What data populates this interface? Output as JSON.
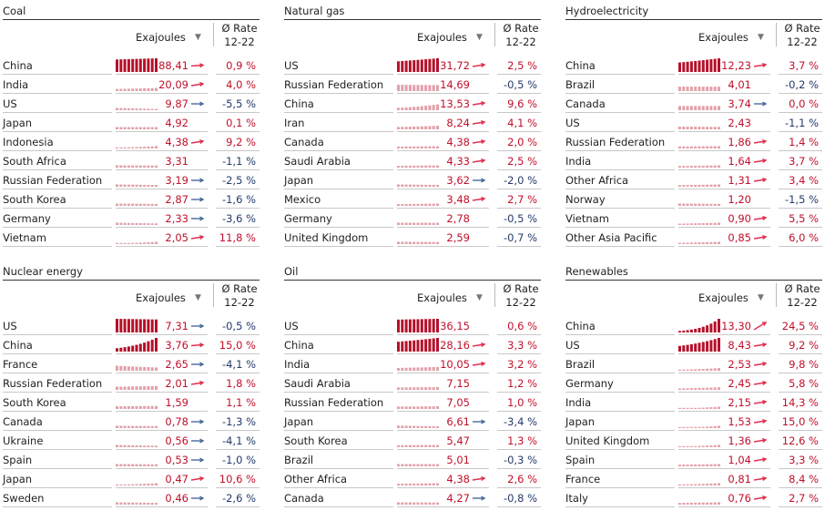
{
  "header": {
    "value_label": "Exajoules",
    "sort_icon": "sort-down-icon",
    "rate_line1": "Ø Rate",
    "rate_line2": "12-22"
  },
  "colors": {
    "bar_strong": "#b5102a",
    "bar_faint": "#e2a0a8",
    "positive": "#c0102a",
    "negative": "#233a6a",
    "arrow_up": "#e03050",
    "arrow_down": "#4a6a9a"
  },
  "chart_data": [
    {
      "type": "table",
      "title": "Coal",
      "rows": [
        {
          "name": "China",
          "value": "88,41",
          "rate": "0,9 %",
          "v": 88.41,
          "r": 0.9,
          "trend": "flat-up"
        },
        {
          "name": "India",
          "value": "20,09",
          "rate": "4,0 %",
          "v": 20.09,
          "r": 4.0,
          "trend": "up"
        },
        {
          "name": "US",
          "value": "9,87",
          "rate": "-5,5 %",
          "v": 9.87,
          "r": -5.5,
          "trend": "down"
        },
        {
          "name": "Japan",
          "value": "4,92",
          "rate": "0,1 %",
          "v": 4.92,
          "r": 0.1,
          "trend": "none"
        },
        {
          "name": "Indonesia",
          "value": "4,38",
          "rate": "9,2 %",
          "v": 4.38,
          "r": 9.2,
          "trend": "up"
        },
        {
          "name": "South Africa",
          "value": "3,31",
          "rate": "-1,1 %",
          "v": 3.31,
          "r": -1.1,
          "trend": "none"
        },
        {
          "name": "Russian Federation",
          "value": "3,19",
          "rate": "-2,5 %",
          "v": 3.19,
          "r": -2.5,
          "trend": "down"
        },
        {
          "name": "South Korea",
          "value": "2,87",
          "rate": "-1,6 %",
          "v": 2.87,
          "r": -1.6,
          "trend": "down"
        },
        {
          "name": "Germany",
          "value": "2,33",
          "rate": "-3,6 %",
          "v": 2.33,
          "r": -3.6,
          "trend": "down"
        },
        {
          "name": "Vietnam",
          "value": "2,05",
          "rate": "11,8 %",
          "v": 2.05,
          "r": 11.8,
          "trend": "up"
        }
      ]
    },
    {
      "type": "table",
      "title": "Natural gas",
      "rows": [
        {
          "name": "US",
          "value": "31,72",
          "rate": "2,5 %",
          "v": 31.72,
          "r": 2.5,
          "trend": "up"
        },
        {
          "name": "Russian Federation",
          "value": "14,69",
          "rate": "-0,5 %",
          "v": 14.69,
          "r": -0.5,
          "trend": "none"
        },
        {
          "name": "China",
          "value": "13,53",
          "rate": "9,6 %",
          "v": 13.53,
          "r": 9.6,
          "trend": "up"
        },
        {
          "name": "Iran",
          "value": "8,24",
          "rate": "4,1 %",
          "v": 8.24,
          "r": 4.1,
          "trend": "up"
        },
        {
          "name": "Canada",
          "value": "4,38",
          "rate": "2,0 %",
          "v": 4.38,
          "r": 2.0,
          "trend": "up"
        },
        {
          "name": "Saudi Arabia",
          "value": "4,33",
          "rate": "2,5 %",
          "v": 4.33,
          "r": 2.5,
          "trend": "up"
        },
        {
          "name": "Japan",
          "value": "3,62",
          "rate": "-2,0 %",
          "v": 3.62,
          "r": -2.0,
          "trend": "down"
        },
        {
          "name": "Mexico",
          "value": "3,48",
          "rate": "2,7 %",
          "v": 3.48,
          "r": 2.7,
          "trend": "up"
        },
        {
          "name": "Germany",
          "value": "2,78",
          "rate": "-0,5 %",
          "v": 2.78,
          "r": -0.5,
          "trend": "none"
        },
        {
          "name": "United Kingdom",
          "value": "2,59",
          "rate": "-0,7 %",
          "v": 2.59,
          "r": -0.7,
          "trend": "none"
        }
      ]
    },
    {
      "type": "table",
      "title": "Hydroelectricity",
      "rows": [
        {
          "name": "China",
          "value": "12,23",
          "rate": "3,7 %",
          "v": 12.23,
          "r": 3.7,
          "trend": "up"
        },
        {
          "name": "Brazil",
          "value": "4,01",
          "rate": "-0,2 %",
          "v": 4.01,
          "r": -0.2,
          "trend": "none"
        },
        {
          "name": "Canada",
          "value": "3,74",
          "rate": "0,0 %",
          "v": 3.74,
          "r": 0.0,
          "trend": "flat"
        },
        {
          "name": "US",
          "value": "2,43",
          "rate": "-1,1 %",
          "v": 2.43,
          "r": -1.1,
          "trend": "none"
        },
        {
          "name": "Russian Federation",
          "value": "1,86",
          "rate": "1,4 %",
          "v": 1.86,
          "r": 1.4,
          "trend": "up"
        },
        {
          "name": "India",
          "value": "1,64",
          "rate": "3,7 %",
          "v": 1.64,
          "r": 3.7,
          "trend": "up"
        },
        {
          "name": "Other Africa",
          "value": "1,31",
          "rate": "3,4 %",
          "v": 1.31,
          "r": 3.4,
          "trend": "up"
        },
        {
          "name": "Norway",
          "value": "1,20",
          "rate": "-1,5 %",
          "v": 1.2,
          "r": -1.5,
          "trend": "none"
        },
        {
          "name": "Vietnam",
          "value": "0,90",
          "rate": "5,5 %",
          "v": 0.9,
          "r": 5.5,
          "trend": "up"
        },
        {
          "name": "Other Asia Pacific",
          "value": "0,85",
          "rate": "6,0 %",
          "v": 0.85,
          "r": 6.0,
          "trend": "up"
        }
      ]
    },
    {
      "type": "table",
      "title": "Nuclear energy",
      "rows": [
        {
          "name": "US",
          "value": "7,31",
          "rate": "-0,5 %",
          "v": 7.31,
          "r": -0.5,
          "trend": "flat"
        },
        {
          "name": "China",
          "value": "3,76",
          "rate": "15,0 %",
          "v": 3.76,
          "r": 15.0,
          "trend": "flat-up"
        },
        {
          "name": "France",
          "value": "2,65",
          "rate": "-4,1 %",
          "v": 2.65,
          "r": -4.1,
          "trend": "flat"
        },
        {
          "name": "Russian Federation",
          "value": "2,01",
          "rate": "1,8 %",
          "v": 2.01,
          "r": 1.8,
          "trend": "up"
        },
        {
          "name": "South Korea",
          "value": "1,59",
          "rate": "1,1 %",
          "v": 1.59,
          "r": 1.1,
          "trend": "none"
        },
        {
          "name": "Canada",
          "value": "0,78",
          "rate": "-1,3 %",
          "v": 0.78,
          "r": -1.3,
          "trend": "flat"
        },
        {
          "name": "Ukraine",
          "value": "0,56",
          "rate": "-4,1 %",
          "v": 0.56,
          "r": -4.1,
          "trend": "flat"
        },
        {
          "name": "Spain",
          "value": "0,53",
          "rate": "-1,0 %",
          "v": 0.53,
          "r": -1.0,
          "trend": "flat"
        },
        {
          "name": "Japan",
          "value": "0,47",
          "rate": "10,6 %",
          "v": 0.47,
          "r": 10.6,
          "trend": "up"
        },
        {
          "name": "Sweden",
          "value": "0,46",
          "rate": "-2,6 %",
          "v": 0.46,
          "r": -2.6,
          "trend": "flat"
        }
      ]
    },
    {
      "type": "table",
      "title": "Oil",
      "rows": [
        {
          "name": "US",
          "value": "36,15",
          "rate": "0,6 %",
          "v": 36.15,
          "r": 0.6,
          "trend": "none"
        },
        {
          "name": "China",
          "value": "28,16",
          "rate": "3,3 %",
          "v": 28.16,
          "r": 3.3,
          "trend": "up"
        },
        {
          "name": "India",
          "value": "10,05",
          "rate": "3,2 %",
          "v": 10.05,
          "r": 3.2,
          "trend": "up"
        },
        {
          "name": "Saudi Arabia",
          "value": "7,15",
          "rate": "1,2 %",
          "v": 7.15,
          "r": 1.2,
          "trend": "none"
        },
        {
          "name": "Russian Federation",
          "value": "7,05",
          "rate": "1,0 %",
          "v": 7.05,
          "r": 1.0,
          "trend": "none"
        },
        {
          "name": "Japan",
          "value": "6,61",
          "rate": "-3,4 %",
          "v": 6.61,
          "r": -3.4,
          "trend": "flat"
        },
        {
          "name": "South Korea",
          "value": "5,47",
          "rate": "1,3 %",
          "v": 5.47,
          "r": 1.3,
          "trend": "none"
        },
        {
          "name": "Brazil",
          "value": "5,01",
          "rate": "-0,3 %",
          "v": 5.01,
          "r": -0.3,
          "trend": "none"
        },
        {
          "name": "Other Africa",
          "value": "4,38",
          "rate": "2,6 %",
          "v": 4.38,
          "r": 2.6,
          "trend": "up"
        },
        {
          "name": "Canada",
          "value": "4,27",
          "rate": "-0,8 %",
          "v": 4.27,
          "r": -0.8,
          "trend": "flat"
        }
      ]
    },
    {
      "type": "table",
      "title": "Renewables",
      "rows": [
        {
          "name": "China",
          "value": "13,30",
          "rate": "24,5 %",
          "v": 13.3,
          "r": 24.5,
          "trend": "steep-up"
        },
        {
          "name": "US",
          "value": "8,43",
          "rate": "9,2 %",
          "v": 8.43,
          "r": 9.2,
          "trend": "up"
        },
        {
          "name": "Brazil",
          "value": "2,53",
          "rate": "9,8 %",
          "v": 2.53,
          "r": 9.8,
          "trend": "up"
        },
        {
          "name": "Germany",
          "value": "2,45",
          "rate": "5,8 %",
          "v": 2.45,
          "r": 5.8,
          "trend": "up"
        },
        {
          "name": "India",
          "value": "2,15",
          "rate": "14,3 %",
          "v": 2.15,
          "r": 14.3,
          "trend": "up"
        },
        {
          "name": "Japan",
          "value": "1,53",
          "rate": "15,0 %",
          "v": 1.53,
          "r": 15.0,
          "trend": "up"
        },
        {
          "name": "United Kingdom",
          "value": "1,36",
          "rate": "12,6 %",
          "v": 1.36,
          "r": 12.6,
          "trend": "up"
        },
        {
          "name": "Spain",
          "value": "1,04",
          "rate": "3,3 %",
          "v": 1.04,
          "r": 3.3,
          "trend": "up"
        },
        {
          "name": "France",
          "value": "0,81",
          "rate": "8,4 %",
          "v": 0.81,
          "r": 8.4,
          "trend": "up"
        },
        {
          "name": "Italy",
          "value": "0,76",
          "rate": "2,7 %",
          "v": 0.76,
          "r": 2.7,
          "trend": "up"
        }
      ]
    }
  ]
}
